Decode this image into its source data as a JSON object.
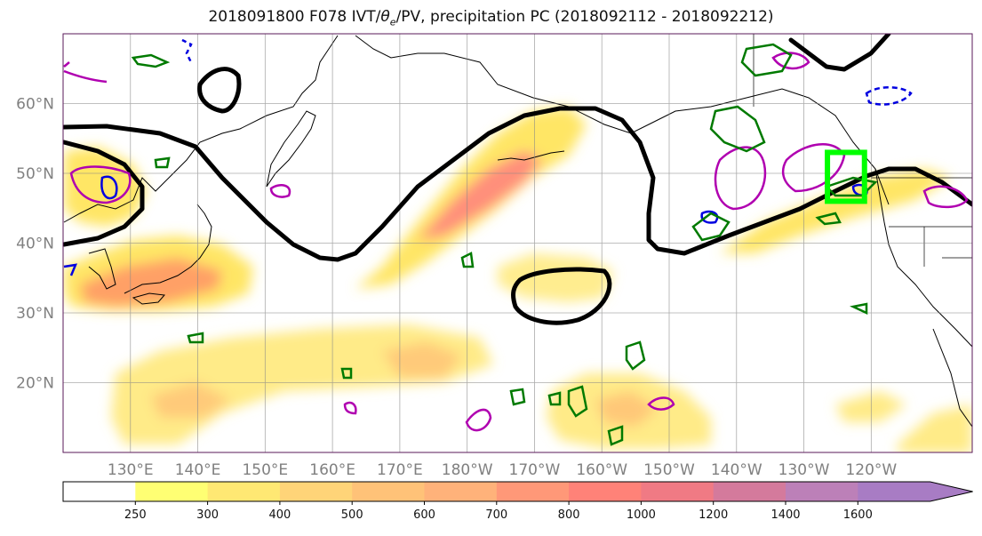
{
  "title": {
    "prefix": "2018091800 F078 IVT/",
    "theta": "θ",
    "theta_sub": "e",
    "suffix": "/PV, precipitation PC (2018092112 - 2018092212)"
  },
  "map": {
    "lat_labels": [
      {
        "lat": 60,
        "label": "60°N"
      },
      {
        "lat": 50,
        "label": "50°N"
      },
      {
        "lat": 40,
        "label": "40°N"
      },
      {
        "lat": 30,
        "label": "30°N"
      },
      {
        "lat": 20,
        "label": "20°N"
      }
    ],
    "lon_labels": [
      {
        "lon": 130,
        "label": "130°E"
      },
      {
        "lon": 140,
        "label": "140°E"
      },
      {
        "lon": 150,
        "label": "150°E"
      },
      {
        "lon": 160,
        "label": "160°E"
      },
      {
        "lon": 170,
        "label": "170°E"
      },
      {
        "lon": 180,
        "label": "180°W"
      },
      {
        "lon": 190,
        "label": "170°W"
      },
      {
        "lon": 200,
        "label": "160°W"
      },
      {
        "lon": 210,
        "label": "150°W"
      },
      {
        "lon": 220,
        "label": "140°W"
      },
      {
        "lon": 230,
        "label": "130°W"
      },
      {
        "lon": 240,
        "label": "120°W"
      }
    ],
    "extent": {
      "lon_min": 120,
      "lon_max": 255,
      "lat_min": 10,
      "lat_max": 70
    },
    "highlight_box": {
      "lon_min": 233.5,
      "lon_max": 239,
      "lat_min": 46,
      "lat_max": 53,
      "color": "#00ff00"
    },
    "colors": {
      "theta_contour": "#000000",
      "pv_contour": "#b000b0",
      "precip_contour_green": "#007a00",
      "precip_contour_blue": "#0000e0"
    }
  },
  "colorbar": {
    "ticks": [
      "250",
      "300",
      "400",
      "500",
      "600",
      "700",
      "800",
      "1000",
      "1200",
      "1400",
      "1600"
    ],
    "colors": [
      "#ffff73",
      "#ffe873",
      "#ffd478",
      "#ffc278",
      "#ffb27a",
      "#ff9878",
      "#ff8278",
      "#f07a84",
      "#d47a9c",
      "#bc80b8",
      "#a87cc4"
    ]
  }
}
